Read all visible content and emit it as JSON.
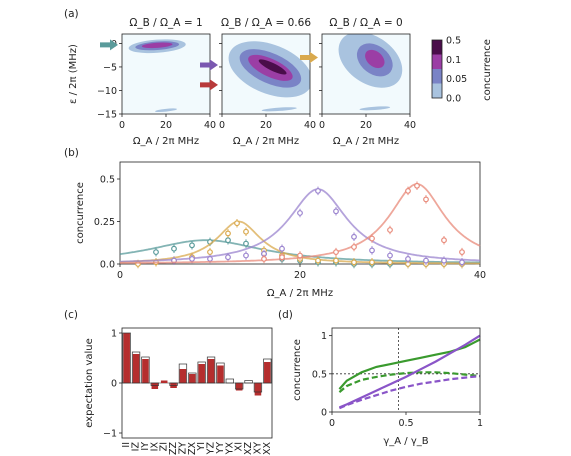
{
  "panel_labels": [
    "(a)",
    "(b)",
    "(c)",
    "(d)"
  ],
  "chart_data": [
    {
      "panel": "(a)",
      "type": "heatmap",
      "subplots": [
        {
          "title": "Ω_B / Ω_A = 1",
          "arrow_y": -0.3,
          "arrow_color": "#5a9b9b"
        },
        {
          "title": "Ω_B / Ω_A = 0.66",
          "arrow_y": -4.6,
          "arrow_color": "#7a58b0",
          "arrow_y2": -8.8,
          "arrow_color2": "#b83a3a"
        },
        {
          "title": "Ω_B / Ω_A = 0",
          "arrow_y": -3.0,
          "arrow_color": "#d9a94d"
        }
      ],
      "xlabel": "Ω_A / 2π MHz",
      "ylabel": "ε / 2π (MHz)",
      "xlim": [
        0,
        40
      ],
      "ylim": [
        -15,
        2
      ],
      "xticks": [
        "0",
        "20",
        "40"
      ],
      "yticks": [
        "0",
        "−5",
        "−10",
        "−15"
      ],
      "colorbar": {
        "label": "concurrence",
        "ticks": [
          "0.5",
          "0.1",
          "0.05",
          "0.0"
        ],
        "levels": [
          0.0,
          0.05,
          0.1,
          0.5
        ],
        "colors": [
          "#f2fafd",
          "#a9c3df",
          "#7a83c6",
          "#9b3ea5",
          "#4a0d4a"
        ]
      }
    },
    {
      "panel": "(b)",
      "type": "line",
      "xlabel": "Ω_A / 2π MHz",
      "ylabel": "concurrence",
      "xlim": [
        0,
        40
      ],
      "ylim": [
        0,
        0.6
      ],
      "xticks": [
        "0",
        "20",
        "40"
      ],
      "yticks": [
        "0.0",
        "0.25",
        "0.5"
      ],
      "series": [
        {
          "color": "#5a9b9b",
          "peak_x": 9.5,
          "peak_y": 0.14,
          "width": 8.0,
          "points_x": [
            4,
            6,
            8,
            10,
            12,
            14,
            16,
            18,
            20,
            22,
            24,
            26,
            28,
            30,
            32,
            34,
            36,
            38
          ],
          "points_y": [
            0.07,
            0.09,
            0.11,
            0.13,
            0.14,
            0.12,
            0.06,
            0.03,
            0.02,
            0.01,
            0.01,
            0.0,
            0.0,
            0.0,
            0.0,
            0.0,
            0.0,
            0.0
          ]
        },
        {
          "color": "#d9a94d",
          "peak_x": 13.2,
          "peak_y": 0.25,
          "width": 3.0,
          "points_x": [
            2,
            4,
            6,
            8,
            10,
            12,
            13,
            14,
            16,
            18,
            20,
            22,
            24,
            26,
            28,
            30,
            32,
            34,
            36,
            38
          ],
          "points_y": [
            0.0,
            0.01,
            0.02,
            0.04,
            0.07,
            0.18,
            0.24,
            0.19,
            0.08,
            0.05,
            0.03,
            0.02,
            0.02,
            0.01,
            0.01,
            0.01,
            0.0,
            0.0,
            0.0,
            0.0
          ]
        },
        {
          "color": "#9b84cf",
          "peak_x": 22.0,
          "peak_y": 0.44,
          "width": 4.0,
          "points_x": [
            6,
            8,
            10,
            12,
            14,
            16,
            18,
            20,
            22,
            24,
            26,
            28,
            30,
            32,
            34,
            36,
            38
          ],
          "points_y": [
            0.02,
            0.03,
            0.03,
            0.04,
            0.05,
            0.06,
            0.09,
            0.3,
            0.43,
            0.31,
            0.16,
            0.08,
            0.05,
            0.03,
            0.02,
            0.02,
            0.01
          ]
        },
        {
          "color": "#e88a7a",
          "peak_x": 33.0,
          "peak_y": 0.47,
          "width": 3.8,
          "points_x": [
            16,
            18,
            20,
            24,
            26,
            28,
            30,
            32,
            33,
            34,
            36,
            38
          ],
          "points_y": [
            0.03,
            0.04,
            0.05,
            0.07,
            0.1,
            0.15,
            0.2,
            0.43,
            0.46,
            0.38,
            0.14,
            0.07
          ]
        }
      ]
    },
    {
      "panel": "(c)",
      "type": "bar",
      "ylabel": "expectation value",
      "ylim": [
        -1.1,
        1.1
      ],
      "yticks": [
        "1",
        "0",
        "−1"
      ],
      "categories": [
        "II",
        "IZ",
        "IY",
        "IX",
        "ZI",
        "ZZ",
        "ZY",
        "ZX",
        "YI",
        "YZ",
        "YY",
        "YX",
        "XI",
        "XZ",
        "XY",
        "XX"
      ],
      "values": [
        1.0,
        0.58,
        0.48,
        -0.12,
        0.05,
        -0.1,
        0.28,
        0.18,
        0.38,
        0.48,
        0.35,
        0.0,
        -0.15,
        0.0,
        -0.25,
        0.42
      ],
      "ideal": [
        1.0,
        0.62,
        0.52,
        -0.05,
        0.0,
        -0.05,
        0.38,
        0.2,
        0.42,
        0.52,
        0.4,
        0.08,
        -0.12,
        0.05,
        -0.18,
        0.48
      ],
      "bar_color": "#b52e2e"
    },
    {
      "panel": "(d)",
      "type": "line",
      "xlabel": "γ_A / γ_B",
      "ylabel": "concurrence",
      "xlim": [
        0,
        1
      ],
      "ylim": [
        0,
        1.1
      ],
      "xticks": [
        "0",
        "0.5",
        "1"
      ],
      "yticks": [
        "0",
        "0.5",
        "1"
      ],
      "vline_x": 0.45,
      "hline_y": 0.5,
      "series": [
        {
          "color": "#3a9a2e",
          "style": "solid",
          "x": [
            0.05,
            0.1,
            0.2,
            0.3,
            0.4,
            0.5,
            0.6,
            0.7,
            0.8,
            0.9,
            0.95,
            1.0
          ],
          "y": [
            0.3,
            0.41,
            0.52,
            0.59,
            0.63,
            0.67,
            0.71,
            0.75,
            0.79,
            0.85,
            0.9,
            0.95
          ]
        },
        {
          "color": "#3a9a2e",
          "style": "dashed",
          "x": [
            0.05,
            0.1,
            0.2,
            0.3,
            0.4,
            0.5,
            0.6,
            0.7,
            0.8,
            0.9,
            1.0
          ],
          "y": [
            0.26,
            0.34,
            0.42,
            0.46,
            0.49,
            0.51,
            0.52,
            0.52,
            0.51,
            0.49,
            0.47
          ]
        },
        {
          "color": "#8a55c8",
          "style": "solid",
          "x": [
            0.05,
            0.1,
            0.2,
            0.3,
            0.4,
            0.5,
            0.6,
            0.7,
            0.8,
            0.9,
            1.0
          ],
          "y": [
            0.06,
            0.1,
            0.19,
            0.28,
            0.37,
            0.46,
            0.56,
            0.66,
            0.77,
            0.88,
            1.0
          ]
        },
        {
          "color": "#8a55c8",
          "style": "dashed",
          "x": [
            0.05,
            0.1,
            0.2,
            0.3,
            0.4,
            0.5,
            0.6,
            0.7,
            0.8,
            0.9,
            1.0
          ],
          "y": [
            0.05,
            0.09,
            0.16,
            0.22,
            0.28,
            0.33,
            0.37,
            0.4,
            0.43,
            0.45,
            0.47
          ]
        }
      ]
    }
  ]
}
